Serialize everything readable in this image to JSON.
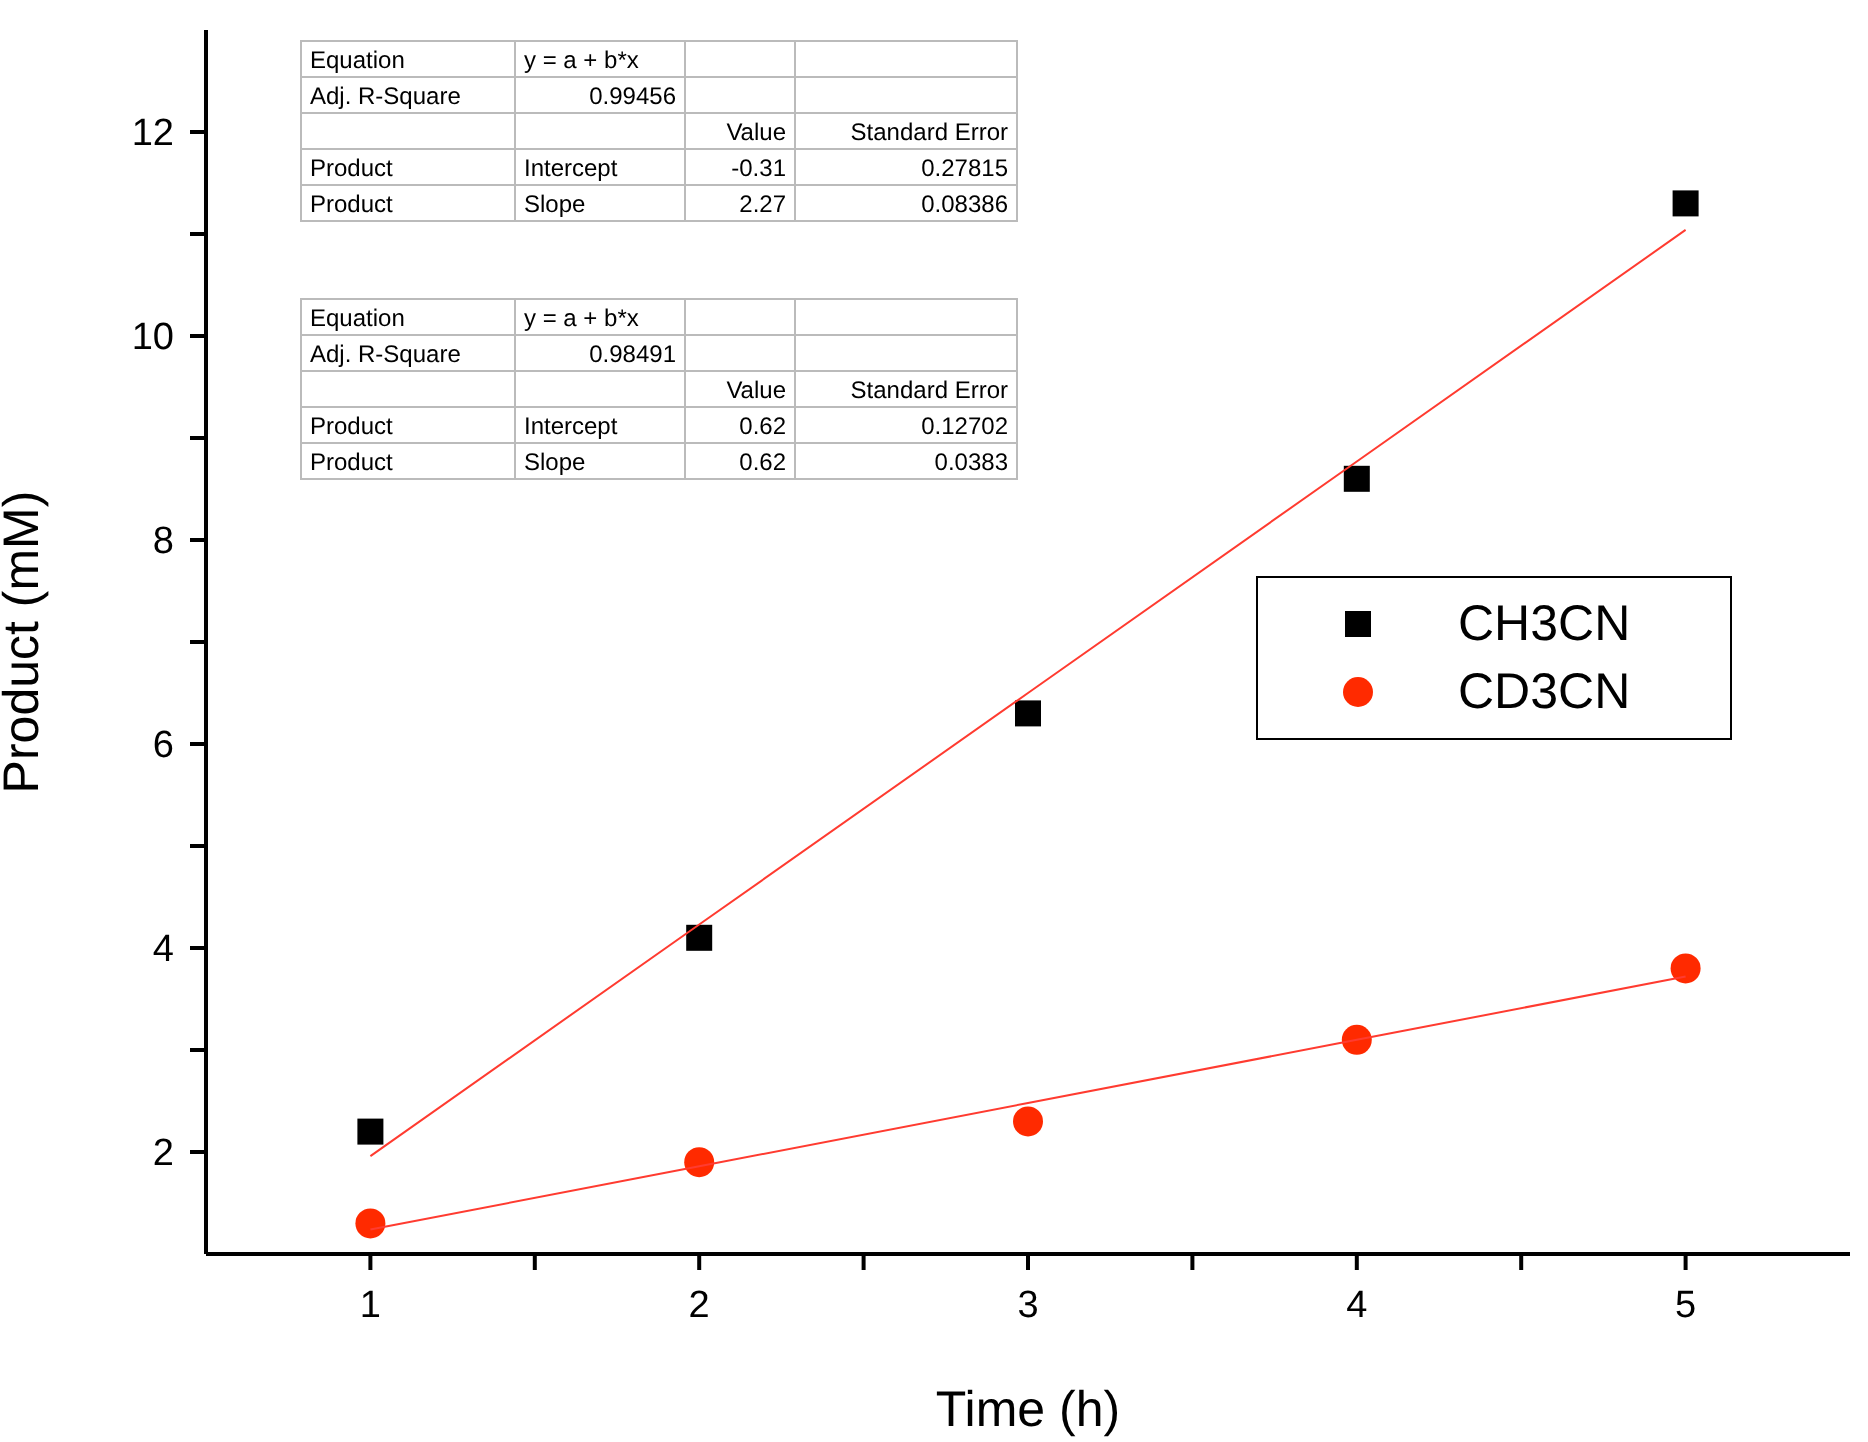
{
  "chart_data": {
    "type": "scatter",
    "xlabel": "Time (h)",
    "ylabel": "Product (mM)",
    "x": [
      1,
      2,
      3,
      4,
      5
    ],
    "series": [
      {
        "name": "CH3CN",
        "color": "#000000",
        "marker": "square",
        "values": [
          2.2,
          4.1,
          6.3,
          8.6,
          11.3
        ]
      },
      {
        "name": "CD3CN",
        "color": "#ff2a00",
        "marker": "circle",
        "values": [
          1.3,
          1.9,
          2.3,
          3.1,
          3.8
        ]
      },
      {
        "type": "line",
        "color": "#ff3b30",
        "values": [
          1.96,
          4.23,
          6.5,
          8.77,
          11.04
        ]
      },
      {
        "type": "line",
        "color": "#ff3b30",
        "values": [
          1.24,
          1.86,
          2.48,
          3.1,
          3.72
        ]
      }
    ],
    "xlim": [
      0.5,
      5.5
    ],
    "xticks": [
      1,
      {
        "value": 1.5,
        "label": null
      },
      2,
      {
        "value": 2.5,
        "label": null
      },
      3,
      {
        "value": 3.5,
        "label": null
      },
      4,
      {
        "value": 4.5,
        "label": null
      },
      5
    ],
    "ylim": [
      1,
      13
    ],
    "yticks": [
      2,
      {
        "value": 3,
        "label": null
      },
      4,
      {
        "value": 5,
        "label": null
      },
      6,
      {
        "value": 7,
        "label": null
      },
      8,
      {
        "value": 9,
        "label": null
      },
      10,
      {
        "value": 11,
        "label": null
      },
      12
    ],
    "grid": false,
    "legend": "right",
    "annotations": [
      "Equation\ty = a + b*x\t\t\nAdj. R-Square\t0.99456\t\t\n\t\tValue\tStandard Error\nProduct\tIntercept\t-0.31\t0.27815\nProduct\tSlope\t2.27\t0.08386",
      "Equation\ty = a + b*x\t\t\nAdj. R-Square\t0.98491\t\t\n\t\tValue\tStandard Error\nProduct\tIntercept\t0.62\t0.12702\nProduct\tSlope\t0.62\t0.0383"
    ]
  }
}
